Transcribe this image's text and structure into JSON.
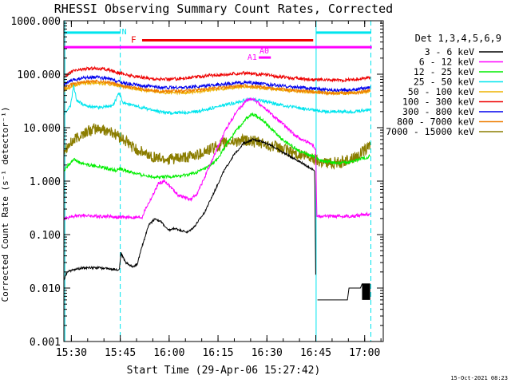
{
  "chart_data": {
    "type": "line",
    "title": "RHESSI Observing Summary Count Rates, Corrected",
    "xlabel": "Start Time (29-Apr-06 15:27:42)",
    "ylabel": "Corrected Count Rate (s⁻¹ detector⁻¹)",
    "yscale": "log",
    "ylim": [
      0.001,
      1000
    ],
    "xlim_minutes_after_start": [
      0,
      98
    ],
    "x_ticks": [
      {
        "label": "15:30",
        "minute": 2.3
      },
      {
        "label": "15:45",
        "minute": 17.3
      },
      {
        "label": "16:00",
        "minute": 32.3
      },
      {
        "label": "16:15",
        "minute": 47.3
      },
      {
        "label": "16:30",
        "minute": 62.3
      },
      {
        "label": "16:45",
        "minute": 77.3
      },
      {
        "label": "17:00",
        "minute": 92.3
      }
    ],
    "y_ticks": [
      "0.001",
      "0.010",
      "0.100",
      "1.000",
      "10.000",
      "100.000",
      "1000.000"
    ],
    "y_tick_values": [
      0.001,
      0.01,
      0.1,
      1,
      10,
      100,
      1000
    ],
    "legend": {
      "title": "Det 1,3,4,5,6,9",
      "position": "right"
    },
    "timestamp": "15-Oct-2021 08:23",
    "colors": {
      "axes": "#000000",
      "night_line": "#00e5ee",
      "flare_bar": "#ee0000",
      "attenuator_bar": "#ff00ff"
    },
    "series": [
      {
        "name": "3 - 6 keV",
        "color": "#000000",
        "points": [
          [
            0,
            0.014
          ],
          [
            1,
            0.02
          ],
          [
            3,
            0.022
          ],
          [
            6,
            0.024
          ],
          [
            10,
            0.024
          ],
          [
            14,
            0.023
          ],
          [
            17,
            0.022
          ],
          [
            17.5,
            0.045
          ],
          [
            19,
            0.03
          ],
          [
            21,
            0.025
          ],
          [
            22.5,
            0.028
          ],
          [
            24,
            0.06
          ],
          [
            26,
            0.15
          ],
          [
            28,
            0.2
          ],
          [
            30,
            0.17
          ],
          [
            32,
            0.12
          ],
          [
            34,
            0.13
          ],
          [
            36,
            0.12
          ],
          [
            38,
            0.11
          ],
          [
            40,
            0.14
          ],
          [
            43,
            0.25
          ],
          [
            46,
            0.6
          ],
          [
            49,
            1.5
          ],
          [
            52,
            3
          ],
          [
            55,
            5
          ],
          [
            58,
            6
          ],
          [
            61,
            5.5
          ],
          [
            64,
            4.5
          ],
          [
            67,
            3.5
          ],
          [
            70,
            2.8
          ],
          [
            73,
            2.2
          ],
          [
            76,
            1.7
          ],
          [
            77,
            1.5
          ],
          [
            77.3,
            0.013
          ]
        ]
      },
      {
        "name": "6 - 12 keV",
        "color": "#ff00ff",
        "points": [
          [
            0,
            0.2
          ],
          [
            3,
            0.22
          ],
          [
            6,
            0.23
          ],
          [
            10,
            0.22
          ],
          [
            14,
            0.22
          ],
          [
            17,
            0.21
          ],
          [
            19,
            0.21
          ],
          [
            22,
            0.21
          ],
          [
            24,
            0.21
          ],
          [
            25,
            0.3
          ],
          [
            27,
            0.5
          ],
          [
            29,
            0.9
          ],
          [
            31,
            1.0
          ],
          [
            33,
            0.75
          ],
          [
            35,
            0.55
          ],
          [
            37,
            0.5
          ],
          [
            39,
            0.45
          ],
          [
            41,
            0.6
          ],
          [
            44,
            1.5
          ],
          [
            47,
            4
          ],
          [
            50,
            10
          ],
          [
            53,
            20
          ],
          [
            56,
            32
          ],
          [
            58,
            35
          ],
          [
            61,
            25
          ],
          [
            64,
            17
          ],
          [
            67,
            12
          ],
          [
            70,
            8
          ],
          [
            73,
            6
          ],
          [
            76,
            5
          ],
          [
            77.3,
            4
          ],
          [
            77.6,
            0.22
          ],
          [
            81,
            0.22
          ],
          [
            85,
            0.22
          ],
          [
            89,
            0.22
          ],
          [
            92,
            0.24
          ],
          [
            94,
            0.24
          ]
        ]
      },
      {
        "name": "12 - 25 keV",
        "color": "#00ee00",
        "points": [
          [
            0,
            1.6
          ],
          [
            2,
            2.2
          ],
          [
            3,
            2.6
          ],
          [
            5,
            2.2
          ],
          [
            8,
            2.0
          ],
          [
            12,
            1.8
          ],
          [
            16,
            1.6
          ],
          [
            17,
            1.7
          ],
          [
            20,
            1.5
          ],
          [
            24,
            1.3
          ],
          [
            28,
            1.2
          ],
          [
            32,
            1.2
          ],
          [
            36,
            1.25
          ],
          [
            40,
            1.4
          ],
          [
            44,
            1.8
          ],
          [
            47,
            2.5
          ],
          [
            50,
            5
          ],
          [
            53,
            9
          ],
          [
            56,
            15
          ],
          [
            58,
            18
          ],
          [
            61,
            14
          ],
          [
            64,
            9
          ],
          [
            67,
            6
          ],
          [
            70,
            4.5
          ],
          [
            73,
            3.5
          ],
          [
            76,
            3.0
          ],
          [
            77.3,
            2.8
          ],
          [
            79,
            2.4
          ],
          [
            83,
            2.2
          ],
          [
            87,
            2.2
          ],
          [
            90,
            2.5
          ],
          [
            93,
            2.8
          ],
          [
            94,
            3.0
          ]
        ]
      },
      {
        "name": "25 - 50 keV",
        "color": "#00e5ee",
        "points": [
          [
            0,
            18
          ],
          [
            2,
            25
          ],
          [
            3,
            60
          ],
          [
            4,
            32
          ],
          [
            7,
            25
          ],
          [
            11,
            24
          ],
          [
            15,
            26
          ],
          [
            17,
            45
          ],
          [
            18,
            30
          ],
          [
            21,
            26
          ],
          [
            25,
            23
          ],
          [
            29,
            20
          ],
          [
            33,
            19
          ],
          [
            37,
            19
          ],
          [
            41,
            20
          ],
          [
            45,
            23
          ],
          [
            49,
            26
          ],
          [
            53,
            30
          ],
          [
            57,
            34
          ],
          [
            61,
            32
          ],
          [
            65,
            28
          ],
          [
            69,
            25
          ],
          [
            73,
            23
          ],
          [
            77,
            21
          ],
          [
            81,
            20
          ],
          [
            85,
            20
          ],
          [
            89,
            20
          ],
          [
            92,
            21
          ],
          [
            94,
            22
          ]
        ]
      },
      {
        "name": "50 - 100 keV",
        "color": "#eeb400",
        "points": [
          [
            0,
            50
          ],
          [
            3,
            62
          ],
          [
            6,
            68
          ],
          [
            10,
            70
          ],
          [
            14,
            65
          ],
          [
            17,
            60
          ],
          [
            20,
            55
          ],
          [
            25,
            50
          ],
          [
            30,
            46
          ],
          [
            35,
            45
          ],
          [
            40,
            46
          ],
          [
            45,
            50
          ],
          [
            50,
            54
          ],
          [
            55,
            58
          ],
          [
            60,
            56
          ],
          [
            65,
            52
          ],
          [
            70,
            49
          ],
          [
            75,
            47
          ],
          [
            80,
            45
          ],
          [
            85,
            44
          ],
          [
            90,
            45
          ],
          [
            94,
            48
          ]
        ]
      },
      {
        "name": "100 - 300 keV",
        "color": "#ee0000",
        "points": [
          [
            0,
            90
          ],
          [
            3,
            115
          ],
          [
            6,
            125
          ],
          [
            10,
            130
          ],
          [
            14,
            120
          ],
          [
            17,
            105
          ],
          [
            20,
            95
          ],
          [
            25,
            85
          ],
          [
            30,
            80
          ],
          [
            35,
            82
          ],
          [
            40,
            88
          ],
          [
            45,
            95
          ],
          [
            50,
            100
          ],
          [
            55,
            105
          ],
          [
            60,
            100
          ],
          [
            65,
            92
          ],
          [
            70,
            85
          ],
          [
            75,
            80
          ],
          [
            80,
            78
          ],
          [
            85,
            77
          ],
          [
            90,
            80
          ],
          [
            94,
            88
          ]
        ]
      },
      {
        "name": "300 - 800 keV",
        "color": "#0000ee",
        "points": [
          [
            0,
            65
          ],
          [
            3,
            78
          ],
          [
            6,
            85
          ],
          [
            10,
            88
          ],
          [
            14,
            82
          ],
          [
            17,
            72
          ],
          [
            20,
            66
          ],
          [
            25,
            60
          ],
          [
            30,
            56
          ],
          [
            35,
            56
          ],
          [
            40,
            58
          ],
          [
            45,
            62
          ],
          [
            50,
            66
          ],
          [
            55,
            70
          ],
          [
            60,
            67
          ],
          [
            65,
            62
          ],
          [
            70,
            58
          ],
          [
            75,
            55
          ],
          [
            80,
            52
          ],
          [
            85,
            50
          ],
          [
            90,
            52
          ],
          [
            94,
            58
          ]
        ]
      },
      {
        "name": "800 - 7000 keV",
        "color": "#ee7d00",
        "points": [
          [
            0,
            55
          ],
          [
            3,
            66
          ],
          [
            6,
            72
          ],
          [
            10,
            75
          ],
          [
            14,
            70
          ],
          [
            17,
            62
          ],
          [
            20,
            57
          ],
          [
            25,
            52
          ],
          [
            30,
            48
          ],
          [
            35,
            48
          ],
          [
            40,
            50
          ],
          [
            45,
            54
          ],
          [
            50,
            58
          ],
          [
            55,
            61
          ],
          [
            60,
            58
          ],
          [
            65,
            54
          ],
          [
            70,
            50
          ],
          [
            75,
            48
          ],
          [
            80,
            45
          ],
          [
            85,
            44
          ],
          [
            90,
            45
          ],
          [
            94,
            50
          ]
        ]
      },
      {
        "name": "7000 - 15000 keV",
        "color": "#8b7d00",
        "points": [
          [
            0,
            4
          ],
          [
            2,
            5
          ],
          [
            4,
            6.5
          ],
          [
            7,
            8.5
          ],
          [
            10,
            9.5
          ],
          [
            13,
            9
          ],
          [
            16,
            7.5
          ],
          [
            19,
            5.5
          ],
          [
            22,
            4
          ],
          [
            25,
            3.2
          ],
          [
            28,
            2.8
          ],
          [
            31,
            2.6
          ],
          [
            34,
            2.6
          ],
          [
            37,
            2.7
          ],
          [
            40,
            3
          ],
          [
            43,
            3.5
          ],
          [
            46,
            4.2
          ],
          [
            49,
            5
          ],
          [
            52,
            5.5
          ],
          [
            55,
            5.8
          ],
          [
            58,
            5.5
          ],
          [
            61,
            5
          ],
          [
            64,
            4.5
          ],
          [
            67,
            4
          ],
          [
            70,
            3.5
          ],
          [
            73,
            3
          ],
          [
            76,
            2.7
          ],
          [
            77.3,
            2.5
          ],
          [
            79,
            2.3
          ],
          [
            82,
            2.2
          ],
          [
            86,
            2.3
          ],
          [
            90,
            3
          ],
          [
            93,
            4
          ],
          [
            94,
            5
          ]
        ]
      }
    ],
    "stepped_segment_3_6keV": [
      [
        77.8,
        0.006
      ],
      [
        87,
        0.006
      ],
      [
        87.5,
        0.01
      ],
      [
        91,
        0.01
      ],
      [
        91.5,
        0.012
      ],
      [
        94,
        0.012
      ]
    ],
    "night_markers": [
      {
        "label": "N",
        "start": 0,
        "end": 17.3,
        "y": 600
      },
      {
        "label": "",
        "start": 77.4,
        "end": 94.2,
        "y": 600
      }
    ],
    "night_boundaries": [
      0.3,
      17.3,
      77.4,
      94.2
    ],
    "flare_bar": {
      "label": "F",
      "start": 24,
      "end": 76.5,
      "y": 430
    },
    "attenuator_bar": {
      "start": 0,
      "end": 94.5,
      "y": 320
    },
    "attenuator_labels": [
      {
        "label": "A0",
        "minute": 61.5,
        "y": 270
      },
      {
        "label": "A1",
        "minute": 57.8,
        "y": 205
      }
    ],
    "attenuator_a1_bar": {
      "start": 59.8,
      "end": 63.5,
      "y": 205
    }
  }
}
